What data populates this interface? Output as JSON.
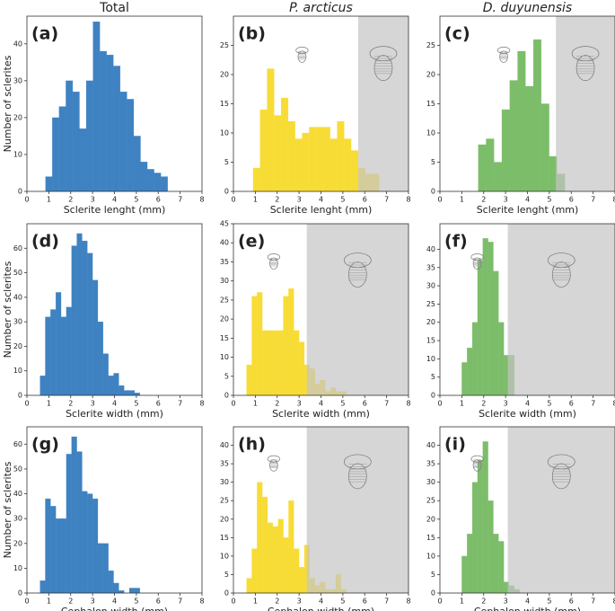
{
  "chart_data": [
    {
      "type": "histogram",
      "title": "Total",
      "label": "(a)",
      "xlabel": "Sclerite lenght (mm)",
      "ylabel": "Number of sclerites",
      "color": "#3e82c2",
      "bins": [
        0.85,
        1.16,
        1.47,
        1.78,
        2.09,
        2.4,
        2.71,
        3.02,
        3.33,
        3.64,
        3.95,
        4.26,
        4.57,
        4.88,
        5.19,
        5.5,
        5.81,
        6.12,
        6.43
      ],
      "counts": [
        4,
        20,
        23,
        30,
        27,
        17,
        30,
        46,
        38,
        37,
        34,
        27,
        25,
        15,
        8,
        6,
        5,
        4
      ],
      "xlim": [
        0,
        8
      ],
      "xticks": [
        0,
        1,
        2,
        3,
        4,
        5,
        6,
        7,
        8
      ],
      "ylim": [
        0,
        47.5
      ],
      "yticks": [
        0,
        10,
        20,
        30,
        40
      ]
    },
    {
      "type": "histogram",
      "title": "P. arcticus",
      "label": "(b)",
      "xlabel": "Sclerite lenght (mm)",
      "color": "#f8dc36",
      "bins": [
        0.9,
        1.22,
        1.54,
        1.86,
        2.18,
        2.5,
        2.82,
        3.14,
        3.46,
        3.78,
        4.1,
        4.42,
        4.74,
        5.06,
        5.38,
        5.7,
        6.02,
        6.34,
        6.66
      ],
      "counts": [
        4,
        14,
        21,
        13,
        16,
        12,
        9,
        10,
        11,
        11,
        11,
        9,
        12,
        9,
        7,
        4,
        3,
        3
      ],
      "xlim": [
        0,
        8
      ],
      "xticks": [
        0,
        1,
        2,
        3,
        4,
        5,
        6,
        7,
        8
      ],
      "ylim": [
        0,
        30
      ],
      "yticks": [
        0,
        5,
        10,
        15,
        20,
        25
      ],
      "shade_from": 5.7
    },
    {
      "type": "histogram",
      "title": "D. duyunensis",
      "label": "(c)",
      "xlabel": "Sclerite lenght (mm)",
      "color": "#7cbd6a",
      "bins": [
        1.75,
        2.11,
        2.47,
        2.83,
        3.19,
        3.55,
        3.91,
        4.27,
        4.63,
        4.99,
        5.35,
        5.71
      ],
      "counts": [
        8,
        9,
        5,
        14,
        19,
        24,
        18,
        26,
        15,
        6,
        3
      ],
      "xlim": [
        0,
        8
      ],
      "xticks": [
        0,
        1,
        2,
        3,
        4,
        5,
        6,
        7,
        8
      ],
      "ylim": [
        0,
        30
      ],
      "yticks": [
        0,
        5,
        10,
        15,
        20,
        25
      ],
      "shade_from": 5.3
    },
    {
      "type": "histogram",
      "label": "(d)",
      "xlabel": "Sclerite width (mm)",
      "ylabel": "Number of sclerites",
      "color": "#3e82c2",
      "bins": [
        0.6,
        0.84,
        1.08,
        1.32,
        1.56,
        1.8,
        2.04,
        2.28,
        2.52,
        2.76,
        3.0,
        3.24,
        3.48,
        3.72,
        3.96,
        4.2,
        4.44,
        4.68,
        4.92,
        5.16
      ],
      "counts": [
        8,
        32,
        35,
        42,
        32,
        36,
        61,
        66,
        63,
        58,
        47,
        30,
        17,
        8,
        9,
        4,
        2,
        2,
        1
      ],
      "xlim": [
        0,
        8
      ],
      "xticks": [
        0,
        1,
        2,
        3,
        4,
        5,
        6,
        7,
        8
      ],
      "ylim": [
        0,
        70
      ],
      "yticks": [
        0,
        10,
        20,
        30,
        40,
        50,
        60
      ]
    },
    {
      "type": "histogram",
      "label": "(e)",
      "xlabel": "Sclerite width (mm)",
      "color": "#f8dc36",
      "bins": [
        0.6,
        0.84,
        1.08,
        1.32,
        1.56,
        1.8,
        2.04,
        2.28,
        2.52,
        2.76,
        3.0,
        3.24,
        3.48,
        3.72,
        3.96,
        4.2,
        4.44,
        4.68,
        4.92,
        5.16
      ],
      "counts": [
        8,
        26,
        27,
        17,
        17,
        17,
        17,
        26,
        28,
        17,
        14,
        8,
        7,
        3,
        4,
        1,
        2,
        1,
        1
      ],
      "xlim": [
        0,
        8
      ],
      "xticks": [
        0,
        1,
        2,
        3,
        4,
        5,
        6,
        7,
        8
      ],
      "ylim": [
        0,
        45
      ],
      "yticks": [
        0,
        5,
        10,
        15,
        20,
        25,
        30,
        35,
        40,
        45
      ],
      "shade_from": 3.35
    },
    {
      "type": "histogram",
      "label": "(f)",
      "xlabel": "Sclerite width (mm)",
      "color": "#7cbd6a",
      "bins": [
        1.0,
        1.24,
        1.48,
        1.72,
        1.96,
        2.2,
        2.44,
        2.68,
        2.92,
        3.16,
        3.4
      ],
      "counts": [
        9,
        13,
        20,
        37,
        43,
        42,
        34,
        20,
        11,
        11
      ],
      "xlim": [
        0,
        8
      ],
      "xticks": [
        0,
        1,
        2,
        3,
        4,
        5,
        6,
        7,
        8
      ],
      "ylim": [
        0,
        47
      ],
      "yticks": [
        0,
        5,
        10,
        15,
        20,
        25,
        30,
        35,
        40
      ],
      "shade_from": 3.1
    },
    {
      "type": "histogram",
      "label": "(g)",
      "xlabel": "Cephalon width (mm)",
      "ylabel": "Number of sclerites",
      "color": "#3e82c2",
      "bins": [
        0.6,
        0.84,
        1.08,
        1.32,
        1.56,
        1.8,
        2.04,
        2.28,
        2.52,
        2.76,
        3.0,
        3.24,
        3.48,
        3.72,
        3.96,
        4.2,
        4.44,
        4.68,
        4.92,
        5.16
      ],
      "counts": [
        5,
        38,
        35,
        30,
        30,
        56,
        63,
        57,
        41,
        40,
        38,
        20,
        20,
        9,
        4,
        1,
        0,
        2,
        2
      ],
      "xlim": [
        0,
        8
      ],
      "xticks": [
        0,
        1,
        2,
        3,
        4,
        5,
        6,
        7,
        8
      ],
      "ylim": [
        0,
        67
      ],
      "yticks": [
        0,
        10,
        20,
        30,
        40,
        50,
        60
      ]
    },
    {
      "type": "histogram",
      "label": "(h)",
      "xlabel": "Cephalon width (mm)",
      "color": "#f8dc36",
      "bins": [
        0.6,
        0.84,
        1.08,
        1.32,
        1.56,
        1.8,
        2.04,
        2.28,
        2.52,
        2.76,
        3.0,
        3.24,
        3.48,
        3.72,
        3.96,
        4.2,
        4.44,
        4.68,
        4.92,
        5.16
      ],
      "counts": [
        4,
        12,
        30,
        26,
        19,
        18,
        20,
        15,
        25,
        12,
        7,
        13,
        4,
        2,
        3,
        1,
        1,
        5,
        1
      ],
      "xlim": [
        0,
        8
      ],
      "xticks": [
        0,
        1,
        2,
        3,
        4,
        5,
        6,
        7,
        8
      ],
      "ylim": [
        0,
        45
      ],
      "yticks": [
        0,
        5,
        10,
        15,
        20,
        25,
        30,
        35,
        40
      ],
      "shade_from": 3.35
    },
    {
      "type": "histogram",
      "label": "(i)",
      "xlabel": "Cephalon width (mm)",
      "color": "#7cbd6a",
      "bins": [
        1.0,
        1.24,
        1.48,
        1.72,
        1.96,
        2.2,
        2.44,
        2.68,
        2.92,
        3.16,
        3.4,
        3.64
      ],
      "counts": [
        10,
        16,
        30,
        36,
        41,
        25,
        16,
        14,
        3,
        2,
        1
      ],
      "xlim": [
        0,
        8
      ],
      "xticks": [
        0,
        1,
        2,
        3,
        4,
        5,
        6,
        7,
        8
      ],
      "ylim": [
        0,
        45
      ],
      "yticks": [
        0,
        5,
        10,
        15,
        20,
        25,
        30,
        35,
        40
      ],
      "shade_from": 3.1
    }
  ]
}
